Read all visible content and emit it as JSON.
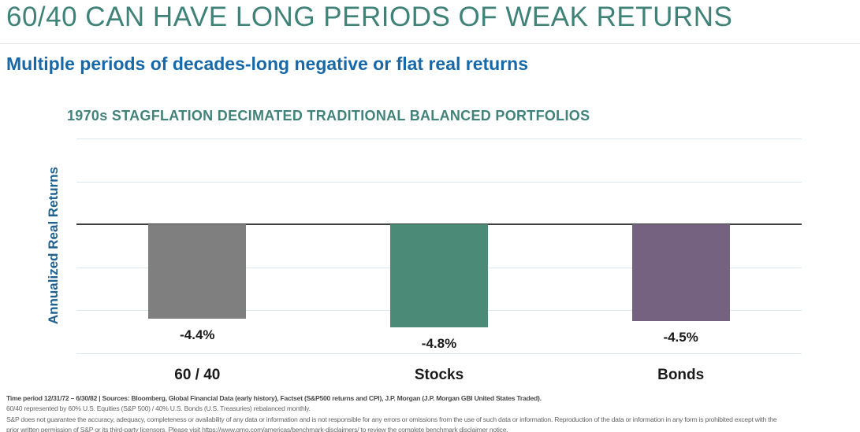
{
  "page": {
    "title": "60/40 CAN HAVE LONG PERIODS OF WEAK RETURNS",
    "subtitle": "Multiple periods of decades-long negative or flat real returns"
  },
  "colors": {
    "title_teal": "#3f8278",
    "subtitle_blue": "#1768a8",
    "chart_title_teal": "#41837b",
    "axis_label_blue": "#1f618f",
    "grid_line": "#dce8ee",
    "zero_line": "#404040",
    "label_black": "#1a1a1a",
    "footer_gray": "#666666",
    "bar_gray": "#7f7f7f",
    "bar_green": "#4a8a76",
    "bar_purple": "#746280"
  },
  "chart_data": {
    "type": "bar",
    "title": "1970s STAGFLATION DECIMATED TRADITIONAL BALANCED PORTFOLIOS",
    "ylabel": "Annualized Real Returns",
    "unit": "%",
    "categories": [
      "60 / 40",
      "Stocks",
      "Bonds"
    ],
    "values": [
      -4.4,
      -4.8,
      -4.5
    ],
    "value_labels": [
      "-4.4%",
      "-4.8%",
      "-4.5%"
    ],
    "bar_colors": [
      "#7f7f7f",
      "#4a8a76",
      "#746280"
    ],
    "ylim": [
      -6,
      4
    ],
    "gridline_step": 2,
    "grid": true,
    "legend": "none",
    "zero_axis_highlighted": true
  },
  "footer": {
    "line1": "Time period 12/31/72 – 6/30/82 | Sources: Bloomberg, Global Financial Data (early history), Factset (S&P500 returns and CPI), J.P. Morgan (J.P. Morgan GBI United States Traded).",
    "line2": "60/40 represented by 60% U.S. Equities (S&P 500) / 40% U.S. Bonds (U.S. Treasuries) rebalanced monthly.",
    "line3": "S&P does not guarantee the accuracy, adequacy, completeness or availability of any data or information and is not responsible for any errors or omissions from the use of such data or information. Reproduction of the data or information in any form is prohibited except with the",
    "line4": "prior written permission of S&P or its third-party licensors. Please visit https://www.gmo.com/americas/benchmark-disclaimers/ to review the complete benchmark disclaimer notice."
  }
}
